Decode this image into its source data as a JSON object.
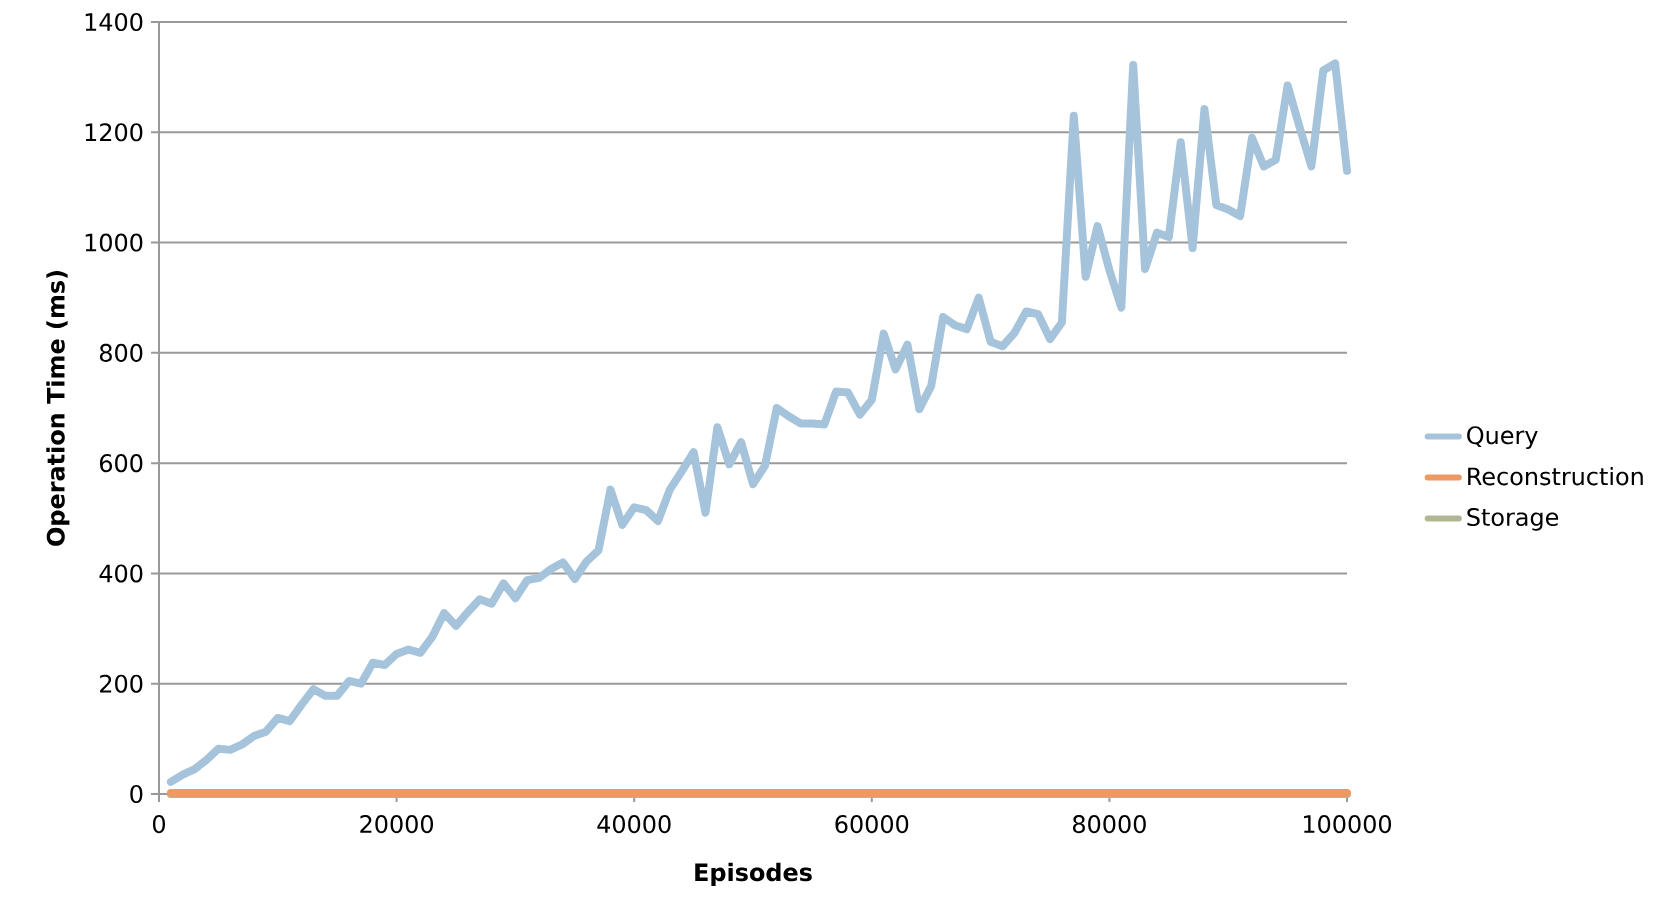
{
  "chart_data": {
    "type": "line",
    "xlabel": "Episodes",
    "ylabel": "Operation Time (ms)",
    "x": [
      1000,
      2000,
      3000,
      4000,
      5000,
      6000,
      7000,
      8000,
      9000,
      10000,
      11000,
      12000,
      13000,
      14000,
      15000,
      16000,
      17000,
      18000,
      19000,
      20000,
      21000,
      22000,
      23000,
      24000,
      25000,
      26000,
      27000,
      28000,
      29000,
      30000,
      31000,
      32000,
      33000,
      34000,
      35000,
      36000,
      37000,
      38000,
      39000,
      40000,
      41000,
      42000,
      43000,
      44000,
      45000,
      46000,
      47000,
      48000,
      49000,
      50000,
      51000,
      52000,
      53000,
      54000,
      55000,
      56000,
      57000,
      58000,
      59000,
      60000,
      61000,
      62000,
      63000,
      64000,
      65000,
      66000,
      67000,
      68000,
      69000,
      70000,
      71000,
      72000,
      73000,
      74000,
      75000,
      76000,
      77000,
      78000,
      79000,
      80000,
      81000,
      82000,
      83000,
      84000,
      85000,
      86000,
      87000,
      88000,
      89000,
      90000,
      91000,
      92000,
      93000,
      94000,
      95000,
      96000,
      97000,
      98000,
      99000,
      100000
    ],
    "series": [
      {
        "name": "Query",
        "color": "#a6c3dc",
        "values": [
          22,
          35,
          45,
          62,
          82,
          80,
          90,
          105,
          113,
          138,
          132,
          162,
          190,
          178,
          178,
          205,
          200,
          238,
          234,
          254,
          262,
          256,
          285,
          328,
          305,
          330,
          353,
          345,
          382,
          355,
          388,
          392,
          408,
          420,
          390,
          422,
          442,
          552,
          488,
          520,
          515,
          495,
          552,
          585,
          620,
          510,
          665,
          598,
          638,
          562,
          595,
          700,
          685,
          672,
          672,
          670,
          730,
          728,
          688,
          715,
          835,
          770,
          815,
          698,
          740,
          865,
          850,
          843,
          900,
          820,
          812,
          836,
          875,
          870,
          825,
          855,
          1230,
          938,
          1030,
          950,
          882,
          1322,
          952,
          1018,
          1010,
          1182,
          990,
          1242,
          1068,
          1060,
          1048,
          1190,
          1138,
          1150,
          1285,
          1210,
          1138,
          1312,
          1325,
          1130
        ]
      },
      {
        "name": "Reconstruction",
        "color": "#ec9a63",
        "values": [
          2,
          2,
          2,
          2,
          2,
          2,
          2,
          2,
          2,
          2,
          2,
          2,
          2,
          2,
          2,
          2,
          2,
          2,
          2,
          2,
          2,
          2,
          2,
          2,
          2,
          2,
          2,
          2,
          2,
          2,
          2,
          2,
          2,
          2,
          2,
          2,
          2,
          2,
          2,
          2,
          2,
          2,
          2,
          2,
          2,
          2,
          2,
          2,
          2,
          2,
          2,
          2,
          2,
          2,
          2,
          2,
          2,
          2,
          2,
          2,
          2,
          2,
          2,
          2,
          2,
          2,
          2,
          2,
          2,
          2,
          2,
          2,
          2,
          2,
          2,
          2,
          2,
          2,
          2,
          2,
          2,
          2,
          2,
          2,
          2,
          2,
          2,
          2,
          2,
          2,
          2,
          2,
          2,
          2,
          2,
          2,
          2,
          2,
          2,
          2
        ]
      },
      {
        "name": "Storage",
        "color": "#b1b695",
        "values": [
          0,
          0,
          0,
          0,
          0,
          0,
          0,
          0,
          0,
          0,
          0,
          0,
          0,
          0,
          0,
          0,
          0,
          0,
          0,
          0,
          0,
          0,
          0,
          0,
          0,
          0,
          0,
          0,
          0,
          0,
          0,
          0,
          0,
          0,
          0,
          0,
          0,
          0,
          0,
          0,
          0,
          0,
          0,
          0,
          0,
          0,
          0,
          0,
          0,
          0,
          0,
          0,
          0,
          0,
          0,
          0,
          0,
          0,
          0,
          0,
          0,
          0,
          0,
          0,
          0,
          0,
          0,
          0,
          0,
          0,
          0,
          0,
          0,
          0,
          0,
          0,
          0,
          0,
          0,
          0,
          0,
          0,
          0,
          0,
          0,
          0,
          0,
          0,
          0,
          0,
          0,
          0,
          0,
          0,
          0,
          0,
          0,
          0,
          0,
          0
        ]
      }
    ],
    "xlim": [
      0,
      100000
    ],
    "xticks": [
      0,
      20000,
      40000,
      60000,
      80000,
      100000
    ],
    "ylim": [
      0,
      1400
    ],
    "yticks": [
      0,
      200,
      400,
      600,
      800,
      1000,
      1200,
      1400
    ],
    "grid": "y",
    "legend": "right",
    "marker": "none",
    "line_style": "solid"
  }
}
